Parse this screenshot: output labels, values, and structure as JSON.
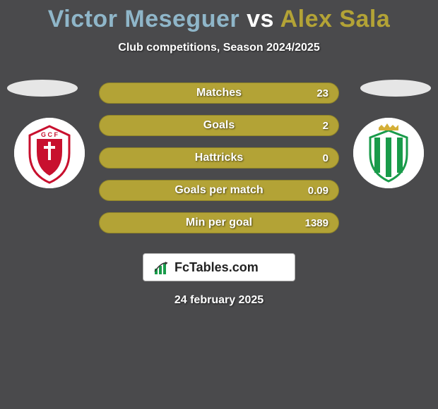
{
  "title_player1": "Victor Meseguer",
  "title_vs": "vs",
  "title_player2": "Alex Sala",
  "title_color_player1": "#8fb6c9",
  "title_color_vs": "#ffffff",
  "title_color_player2": "#b3a336",
  "subtitle": "Club competitions, Season 2024/2025",
  "bars": {
    "fill_color": "#b3a336",
    "bg_color": "#b3a336",
    "border_color": "#8f8429",
    "items": [
      {
        "label": "Matches",
        "value": "23",
        "fill_pct": 100
      },
      {
        "label": "Goals",
        "value": "2",
        "fill_pct": 100
      },
      {
        "label": "Hattricks",
        "value": "0",
        "fill_pct": 100
      },
      {
        "label": "Goals per match",
        "value": "0.09",
        "fill_pct": 100
      },
      {
        "label": "Min per goal",
        "value": "1389",
        "fill_pct": 100
      }
    ]
  },
  "logo_text": "FcTables.com",
  "date": "24 february 2025",
  "badge_left": {
    "bg": "#ffffff",
    "accent": "#c8102e"
  },
  "badge_right": {
    "bg": "#ffffff",
    "stripe": "#199b4a",
    "crown": "#d4af37"
  }
}
